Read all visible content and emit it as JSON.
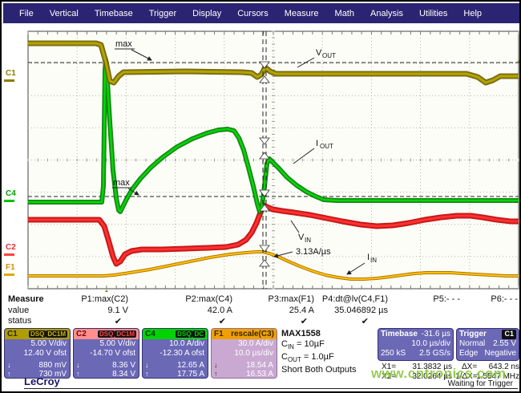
{
  "menu": {
    "items": [
      "File",
      "Vertical",
      "Timebase",
      "Trigger",
      "Display",
      "Cursors",
      "Measure",
      "Math",
      "Analysis",
      "Utilities",
      "Help"
    ]
  },
  "plot": {
    "markers": {
      "c1": "C1",
      "c4": "C4",
      "c2": "C2",
      "f1": "F1"
    },
    "labels": {
      "vout": {
        "base": "V",
        "sub": "OUT"
      },
      "iout": {
        "base": "I",
        "sub": "OUT"
      },
      "vin": {
        "base": "V",
        "sub": "IN"
      },
      "iin": {
        "base": "I",
        "sub": "IN"
      },
      "max_top": "max",
      "max_mid": "max",
      "slew_rate": "3.13A/µs"
    }
  },
  "measure": {
    "row_labels": {
      "measure": "Measure",
      "value": "value",
      "status": "status"
    },
    "columns": [
      {
        "label": "P1:max(C2)",
        "value": "9.1 V",
        "status": "✔"
      },
      {
        "label": "P2:max(C4)",
        "value": "42.0 A",
        "status": "✔"
      },
      {
        "label": "P3:max(F1)",
        "value": "25.4 A",
        "status": "✔"
      },
      {
        "label": "P4:dt@lv(C4,F1)",
        "value": "35.046892 µs",
        "status": "✔"
      },
      {
        "label": "P5:- - -",
        "value": "",
        "status": ""
      },
      {
        "label": "P6:- - -",
        "value": "",
        "status": ""
      }
    ]
  },
  "channels": [
    {
      "id": "C1",
      "badges": [
        "DSQ",
        "DC1M"
      ],
      "scale": "5.00 V/div",
      "offset": "12.40 V ofst",
      "min": "880 mV",
      "max": "730 mV"
    },
    {
      "id": "C2",
      "badges": [
        "DSQ",
        "DC1M"
      ],
      "scale": "5.00 V/div",
      "offset": "-14.70 V ofst",
      "min": "8.36 V",
      "max": "8.34 V"
    },
    {
      "id": "C4",
      "badges": [
        "DSQ",
        "DC"
      ],
      "scale": "10.0 A/div",
      "offset": "-12.30 A ofst",
      "min": "12.65 A",
      "max": "17.75 A"
    }
  ],
  "function_trace": {
    "id": "F1",
    "name": "rescale(C3)",
    "scale": "30.0 A/div",
    "timebase": "10.0 µs/div",
    "min": "18.54 A",
    "max": "16.53 A"
  },
  "icons": {
    "down_arrow": "↓",
    "up_arrow": "↑"
  },
  "notes": {
    "title": "MAX1558",
    "cin": {
      "base": "C",
      "sub": "IN",
      "rest": " = 10µF"
    },
    "cout": {
      "base": "C",
      "sub": "OUT",
      "rest": " = 1.0µF"
    },
    "line3": "Short Both Outputs"
  },
  "timebase": {
    "title": "Timebase",
    "delay": "-31.6 µs",
    "scale": "10.0 µs/div",
    "samples": "250 kS",
    "rate": "2.5 GS/s"
  },
  "trigger": {
    "title": "Trigger",
    "source": "C1",
    "mode": "Normal",
    "level": "2.55 V",
    "coupling": "Edge",
    "slope": "Negative"
  },
  "cursors": {
    "x1_label": "X1=",
    "x1_value": "31.3832 µs",
    "dx_label": "ΔX=",
    "dx_value": "643.2 ns",
    "x2_label": "X2=",
    "x2_value": "32.0264 µs",
    "invdx_label": "1/ΔX=",
    "invdx_value": "1.5547 MHz"
  },
  "status_bar": {
    "text": "Waiting for Trigger"
  },
  "watermark": "www.cntronics.com",
  "logo": "LeCroy",
  "colors": {
    "c1": "#a89b00",
    "c2": "#ff3030",
    "c4": "#00d800",
    "f1": "#ffc000",
    "accent_bg": "#6b68b6",
    "menubar": "#2b2473",
    "watermark": "#8cc63f"
  }
}
